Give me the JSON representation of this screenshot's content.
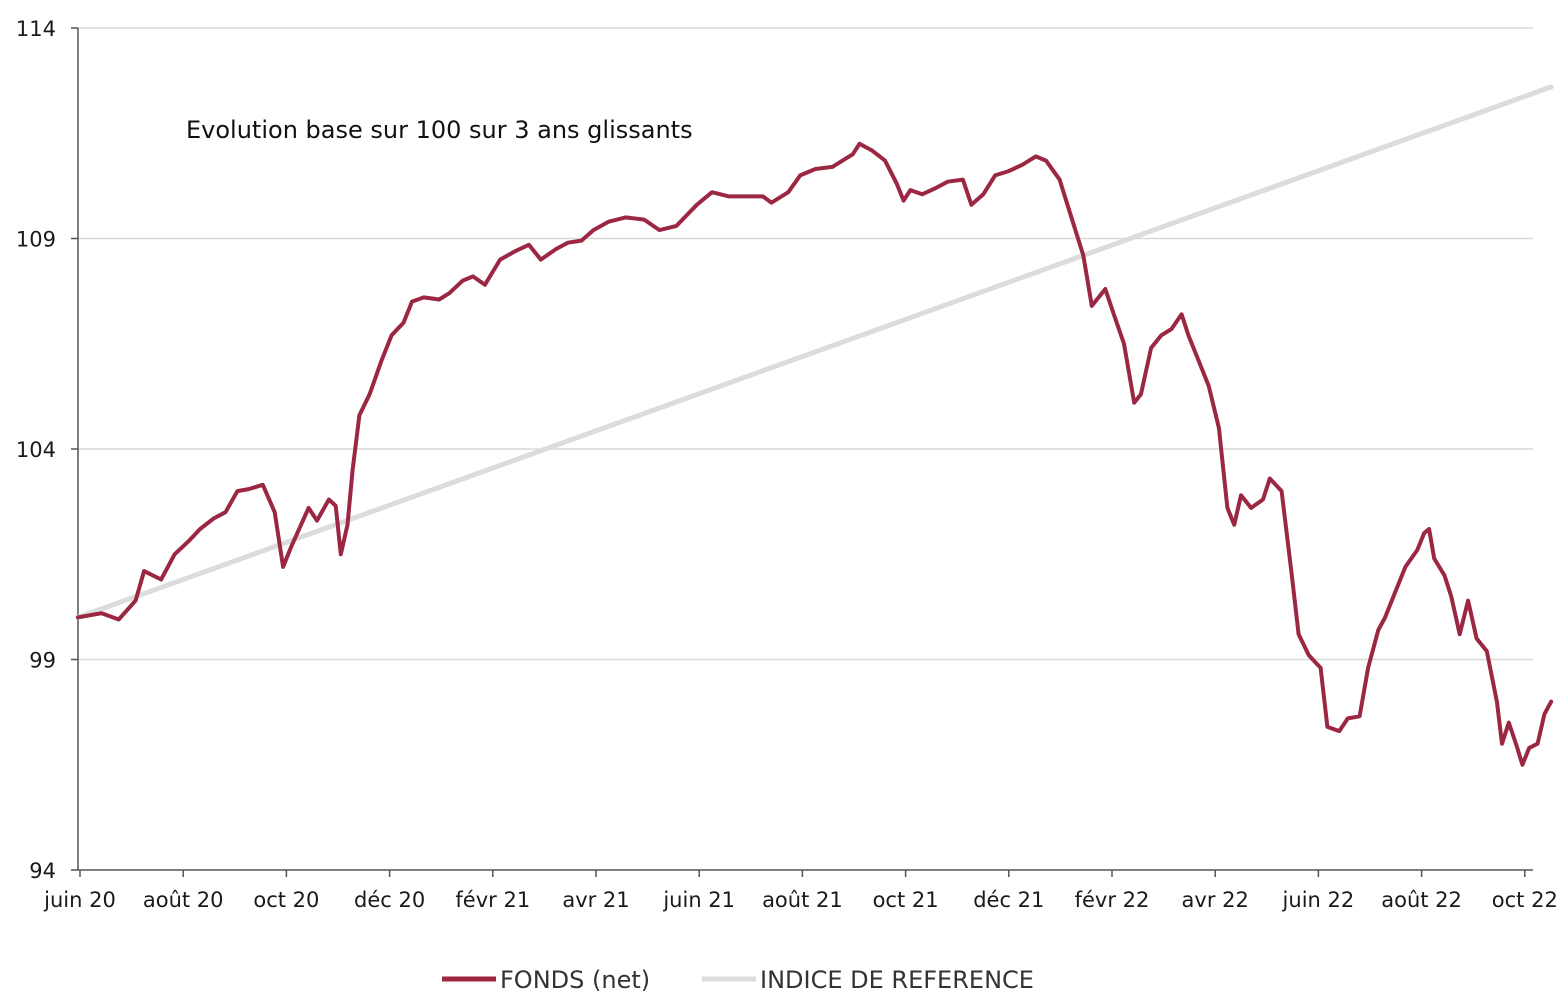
{
  "chart_data": {
    "type": "line",
    "annotation": "Evolution base sur 100 sur 3 ans glissants",
    "x_labels": [
      "juin 20",
      "août 20",
      "oct 20",
      "déc 20",
      "févr 21",
      "avr 21",
      "juin 21",
      "août 21",
      "oct 21",
      "déc 21",
      "févr 22",
      "avr 22",
      "juin 22",
      "août 22",
      "oct 22"
    ],
    "y_ticks": [
      "94",
      "99",
      "104",
      "109",
      "114"
    ],
    "ylim": [
      94,
      114
    ],
    "grid": true,
    "legend_position": "bottom",
    "series": [
      {
        "name": "FONDS (net)",
        "color": "#9b2743",
        "points": [
          [
            "2020-06-01",
            100.0
          ],
          [
            "2020-06-15",
            100.1
          ],
          [
            "2020-06-25",
            99.95
          ],
          [
            "2020-07-05",
            100.4
          ],
          [
            "2020-07-10",
            101.1
          ],
          [
            "2020-07-20",
            100.9
          ],
          [
            "2020-07-28",
            101.5
          ],
          [
            "2020-08-05",
            101.8
          ],
          [
            "2020-08-12",
            102.1
          ],
          [
            "2020-08-20",
            102.35
          ],
          [
            "2020-08-27",
            102.5
          ],
          [
            "2020-09-03",
            103.0
          ],
          [
            "2020-09-10",
            103.05
          ],
          [
            "2020-09-18",
            103.15
          ],
          [
            "2020-09-25",
            102.5
          ],
          [
            "2020-09-30",
            101.2
          ],
          [
            "2020-10-05",
            101.7
          ],
          [
            "2020-10-15",
            102.6
          ],
          [
            "2020-10-20",
            102.3
          ],
          [
            "2020-10-27",
            102.8
          ],
          [
            "2020-10-31",
            102.65
          ],
          [
            "2020-11-03",
            101.5
          ],
          [
            "2020-11-07",
            102.2
          ],
          [
            "2020-11-10",
            103.5
          ],
          [
            "2020-11-14",
            104.8
          ],
          [
            "2020-11-20",
            105.3
          ],
          [
            "2020-11-27",
            106.1
          ],
          [
            "2020-12-03",
            106.7
          ],
          [
            "2020-12-10",
            107.0
          ],
          [
            "2020-12-15",
            107.5
          ],
          [
            "2020-12-22",
            107.6
          ],
          [
            "2020-12-31",
            107.55
          ],
          [
            "2021-01-06",
            107.7
          ],
          [
            "2021-01-14",
            108.0
          ],
          [
            "2021-01-20",
            108.1
          ],
          [
            "2021-01-27",
            107.9
          ],
          [
            "2021-02-05",
            108.5
          ],
          [
            "2021-02-14",
            108.7
          ],
          [
            "2021-02-22",
            108.85
          ],
          [
            "2021-03-01",
            108.5
          ],
          [
            "2021-03-10",
            108.75
          ],
          [
            "2021-03-17",
            108.9
          ],
          [
            "2021-03-25",
            108.95
          ],
          [
            "2021-04-01",
            109.2
          ],
          [
            "2021-04-10",
            109.4
          ],
          [
            "2021-04-20",
            109.5
          ],
          [
            "2021-05-01",
            109.45
          ],
          [
            "2021-05-10",
            109.2
          ],
          [
            "2021-05-20",
            109.3
          ],
          [
            "2021-06-01",
            109.8
          ],
          [
            "2021-06-10",
            110.1
          ],
          [
            "2021-06-20",
            110.0
          ],
          [
            "2021-07-01",
            110.0
          ],
          [
            "2021-07-10",
            110.0
          ],
          [
            "2021-07-15",
            109.85
          ],
          [
            "2021-07-25",
            110.1
          ],
          [
            "2021-08-01",
            110.5
          ],
          [
            "2021-08-10",
            110.65
          ],
          [
            "2021-08-20",
            110.7
          ],
          [
            "2021-08-26",
            110.85
          ],
          [
            "2021-09-01",
            111.0
          ],
          [
            "2021-09-05",
            111.25
          ],
          [
            "2021-09-12",
            111.1
          ],
          [
            "2021-09-20",
            110.85
          ],
          [
            "2021-09-27",
            110.3
          ],
          [
            "2021-10-01",
            109.9
          ],
          [
            "2021-10-05",
            110.15
          ],
          [
            "2021-10-12",
            110.05
          ],
          [
            "2021-10-20",
            110.2
          ],
          [
            "2021-10-27",
            110.35
          ],
          [
            "2021-11-05",
            110.4
          ],
          [
            "2021-11-10",
            109.8
          ],
          [
            "2021-11-17",
            110.05
          ],
          [
            "2021-11-24",
            110.5
          ],
          [
            "2021-12-02",
            110.6
          ],
          [
            "2021-12-10",
            110.75
          ],
          [
            "2021-12-18",
            110.95
          ],
          [
            "2021-12-24",
            110.85
          ],
          [
            "2022-01-01",
            110.4
          ],
          [
            "2022-01-08",
            109.5
          ],
          [
            "2022-01-15",
            108.6
          ],
          [
            "2022-01-20",
            107.4
          ],
          [
            "2022-01-28",
            107.8
          ],
          [
            "2022-02-02",
            107.2
          ],
          [
            "2022-02-08",
            106.5
          ],
          [
            "2022-02-14",
            105.1
          ],
          [
            "2022-02-18",
            105.3
          ],
          [
            "2022-02-24",
            106.4
          ],
          [
            "2022-03-02",
            106.7
          ],
          [
            "2022-03-08",
            106.85
          ],
          [
            "2022-03-14",
            107.2
          ],
          [
            "2022-03-18",
            106.7
          ],
          [
            "2022-03-24",
            106.1
          ],
          [
            "2022-03-30",
            105.5
          ],
          [
            "2022-04-05",
            104.5
          ],
          [
            "2022-04-10",
            102.6
          ],
          [
            "2022-04-14",
            102.2
          ],
          [
            "2022-04-18",
            102.9
          ],
          [
            "2022-04-24",
            102.6
          ],
          [
            "2022-05-01",
            102.8
          ],
          [
            "2022-05-05",
            103.3
          ],
          [
            "2022-05-12",
            103.0
          ],
          [
            "2022-05-18",
            101.0
          ],
          [
            "2022-05-22",
            99.6
          ],
          [
            "2022-05-28",
            99.1
          ],
          [
            "2022-06-04",
            98.8
          ],
          [
            "2022-06-08",
            97.4
          ],
          [
            "2022-06-15",
            97.3
          ],
          [
            "2022-06-20",
            97.6
          ],
          [
            "2022-06-27",
            97.65
          ],
          [
            "2022-07-02",
            98.8
          ],
          [
            "2022-07-08",
            99.7
          ],
          [
            "2022-07-12",
            100.0
          ],
          [
            "2022-07-18",
            100.6
          ],
          [
            "2022-07-24",
            101.2
          ],
          [
            "2022-07-31",
            101.6
          ],
          [
            "2022-08-04",
            102.0
          ],
          [
            "2022-08-07",
            102.1
          ],
          [
            "2022-08-10",
            101.4
          ],
          [
            "2022-08-16",
            101.0
          ],
          [
            "2022-08-20",
            100.5
          ],
          [
            "2022-08-25",
            99.6
          ],
          [
            "2022-08-30",
            100.4
          ],
          [
            "2022-09-04",
            99.5
          ],
          [
            "2022-09-10",
            99.2
          ],
          [
            "2022-09-16",
            98.0
          ],
          [
            "2022-09-19",
            97.0
          ],
          [
            "2022-09-23",
            97.5
          ],
          [
            "2022-09-28",
            96.9
          ],
          [
            "2022-10-01",
            96.5
          ],
          [
            "2022-10-05",
            96.9
          ],
          [
            "2022-10-10",
            97.0
          ],
          [
            "2022-10-14",
            97.7
          ],
          [
            "2022-10-18",
            98.0
          ]
        ]
      },
      {
        "name": "INDICE DE REFERENCE",
        "color": "#dcdcdc",
        "points": [
          [
            "2020-06-01",
            100.0
          ],
          [
            "2022-10-18",
            112.6
          ]
        ]
      }
    ]
  }
}
